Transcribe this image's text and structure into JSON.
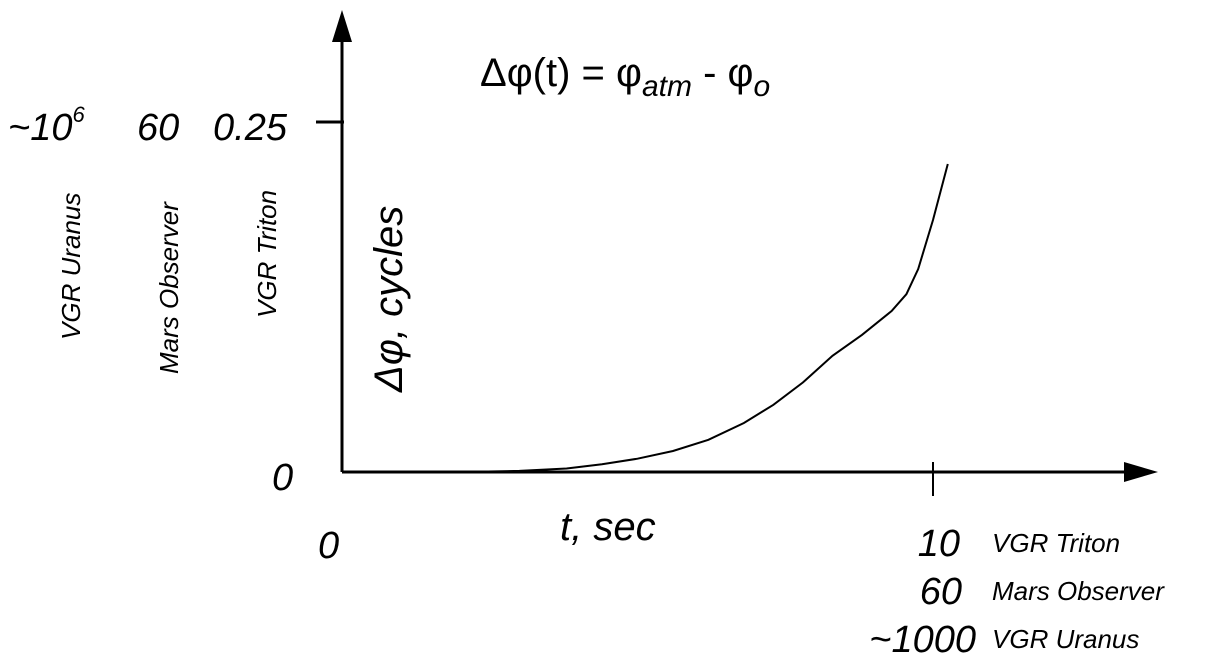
{
  "chart_data": {
    "type": "line",
    "title": {
      "delta": "Δφ(t) = φ",
      "sub_atm": "atm",
      "minus": " - φ",
      "sub_o": "o"
    },
    "xlabel": "t, sec",
    "ylabel": "Δφ, cycles",
    "x_origin_label": "0",
    "y_origin_label": "0",
    "y_tick_values": [
      "~10",
      "6",
      "60",
      "0.25"
    ],
    "y_tick_missions": [
      "VGR Uranus",
      "Mars Observer",
      "VGR Triton"
    ],
    "x_tick_values": [
      "10",
      "60",
      "~1000"
    ],
    "x_tick_missions": [
      "VGR Triton",
      "Mars Observer",
      "VGR Uranus"
    ],
    "xlim": [
      0,
      12.5
    ],
    "ylim": [
      0,
      0.28
    ],
    "x_tick_at": 10,
    "y_tick_at": 0.25,
    "series": [
      {
        "x": [
          0,
          2,
          3.0,
          3.8,
          4.4,
          5.0,
          5.6,
          6.2,
          6.8,
          7.3,
          7.8,
          8.3,
          8.8,
          9.3,
          9.55,
          9.75,
          10.0,
          10.25
        ],
        "y": [
          0,
          0,
          0.0008,
          0.0025,
          0.0055,
          0.0095,
          0.015,
          0.023,
          0.035,
          0.048,
          0.064,
          0.083,
          0.098,
          0.115,
          0.127,
          0.145,
          0.18,
          0.22
        ]
      }
    ]
  }
}
